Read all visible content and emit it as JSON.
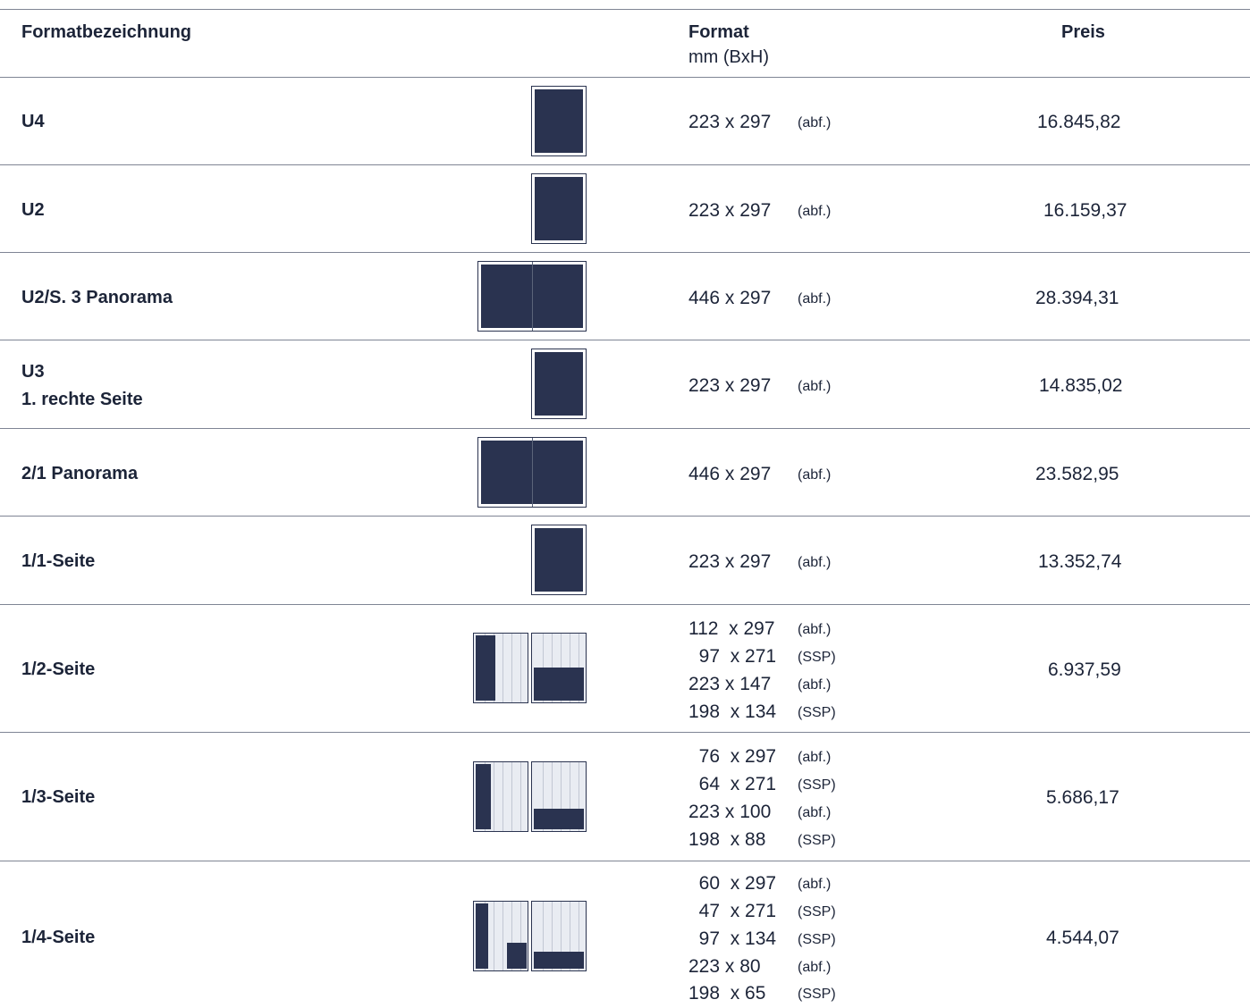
{
  "header": {
    "col_name": "Formatbezeichnung",
    "col_format": "Format",
    "col_format_unit": "mm (BxH)",
    "col_price": "Preis"
  },
  "rows": [
    {
      "name": "U4",
      "icon": "single-page-full-icon",
      "formats": [
        {
          "dim": "223 x 297",
          "tag": "(abf.)"
        }
      ],
      "price": "16.845,82"
    },
    {
      "name": "U2",
      "icon": "single-page-full-icon",
      "formats": [
        {
          "dim": "223 x 297",
          "tag": "(abf.)"
        }
      ],
      "price": "16.159,37"
    },
    {
      "name": "U2/S. 3 Panorama",
      "icon": "panorama-spread-icon",
      "formats": [
        {
          "dim": "446 x 297",
          "tag": "(abf.)"
        }
      ],
      "price": "28.394,31"
    },
    {
      "name": "U3",
      "name_line2": "1. rechte Seite",
      "icon": "single-page-full-icon",
      "formats": [
        {
          "dim": "223 x 297",
          "tag": "(abf.)"
        }
      ],
      "price": "14.835,02"
    },
    {
      "name": "2/1 Panorama",
      "icon": "panorama-spread-icon",
      "formats": [
        {
          "dim": "446 x 297",
          "tag": "(abf.)"
        }
      ],
      "price": "23.582,95"
    },
    {
      "name": "1/1-Seite",
      "icon": "single-page-full-icon",
      "formats": [
        {
          "dim": "223 x 297",
          "tag": "(abf.)"
        }
      ],
      "price": "13.352,74"
    },
    {
      "name": "1/2-Seite",
      "icon": "half-page-layout-icon",
      "formats": [
        {
          "dim": "112  x 297",
          "tag": "(abf.)"
        },
        {
          "dim": "  97  x 271",
          "tag": "(SSP)"
        },
        {
          "dim": "223 x 147",
          "tag": "(abf.)"
        },
        {
          "dim": "198  x 134",
          "tag": "(SSP)"
        }
      ],
      "price": "6.937,59"
    },
    {
      "name": "1/3-Seite",
      "icon": "third-page-layout-icon",
      "formats": [
        {
          "dim": "  76  x 297",
          "tag": "(abf.)"
        },
        {
          "dim": "  64  x 271",
          "tag": "(SSP)"
        },
        {
          "dim": "223 x 100",
          "tag": "(abf.)"
        },
        {
          "dim": "198  x 88",
          "tag": "(SSP)"
        }
      ],
      "price": "5.686,17"
    },
    {
      "name": "1/4-Seite",
      "icon": "quarter-page-layout-icon",
      "formats": [
        {
          "dim": "  60  x 297",
          "tag": "(abf.)"
        },
        {
          "dim": "  47  x 271",
          "tag": "(SSP)"
        },
        {
          "dim": "  97  x 134",
          "tag": "(SSP)"
        },
        {
          "dim": "223 x 80",
          "tag": "(abf.)"
        },
        {
          "dim": "198  x 65",
          "tag": "(SSP)"
        }
      ],
      "price": "4.544,07"
    }
  ]
}
